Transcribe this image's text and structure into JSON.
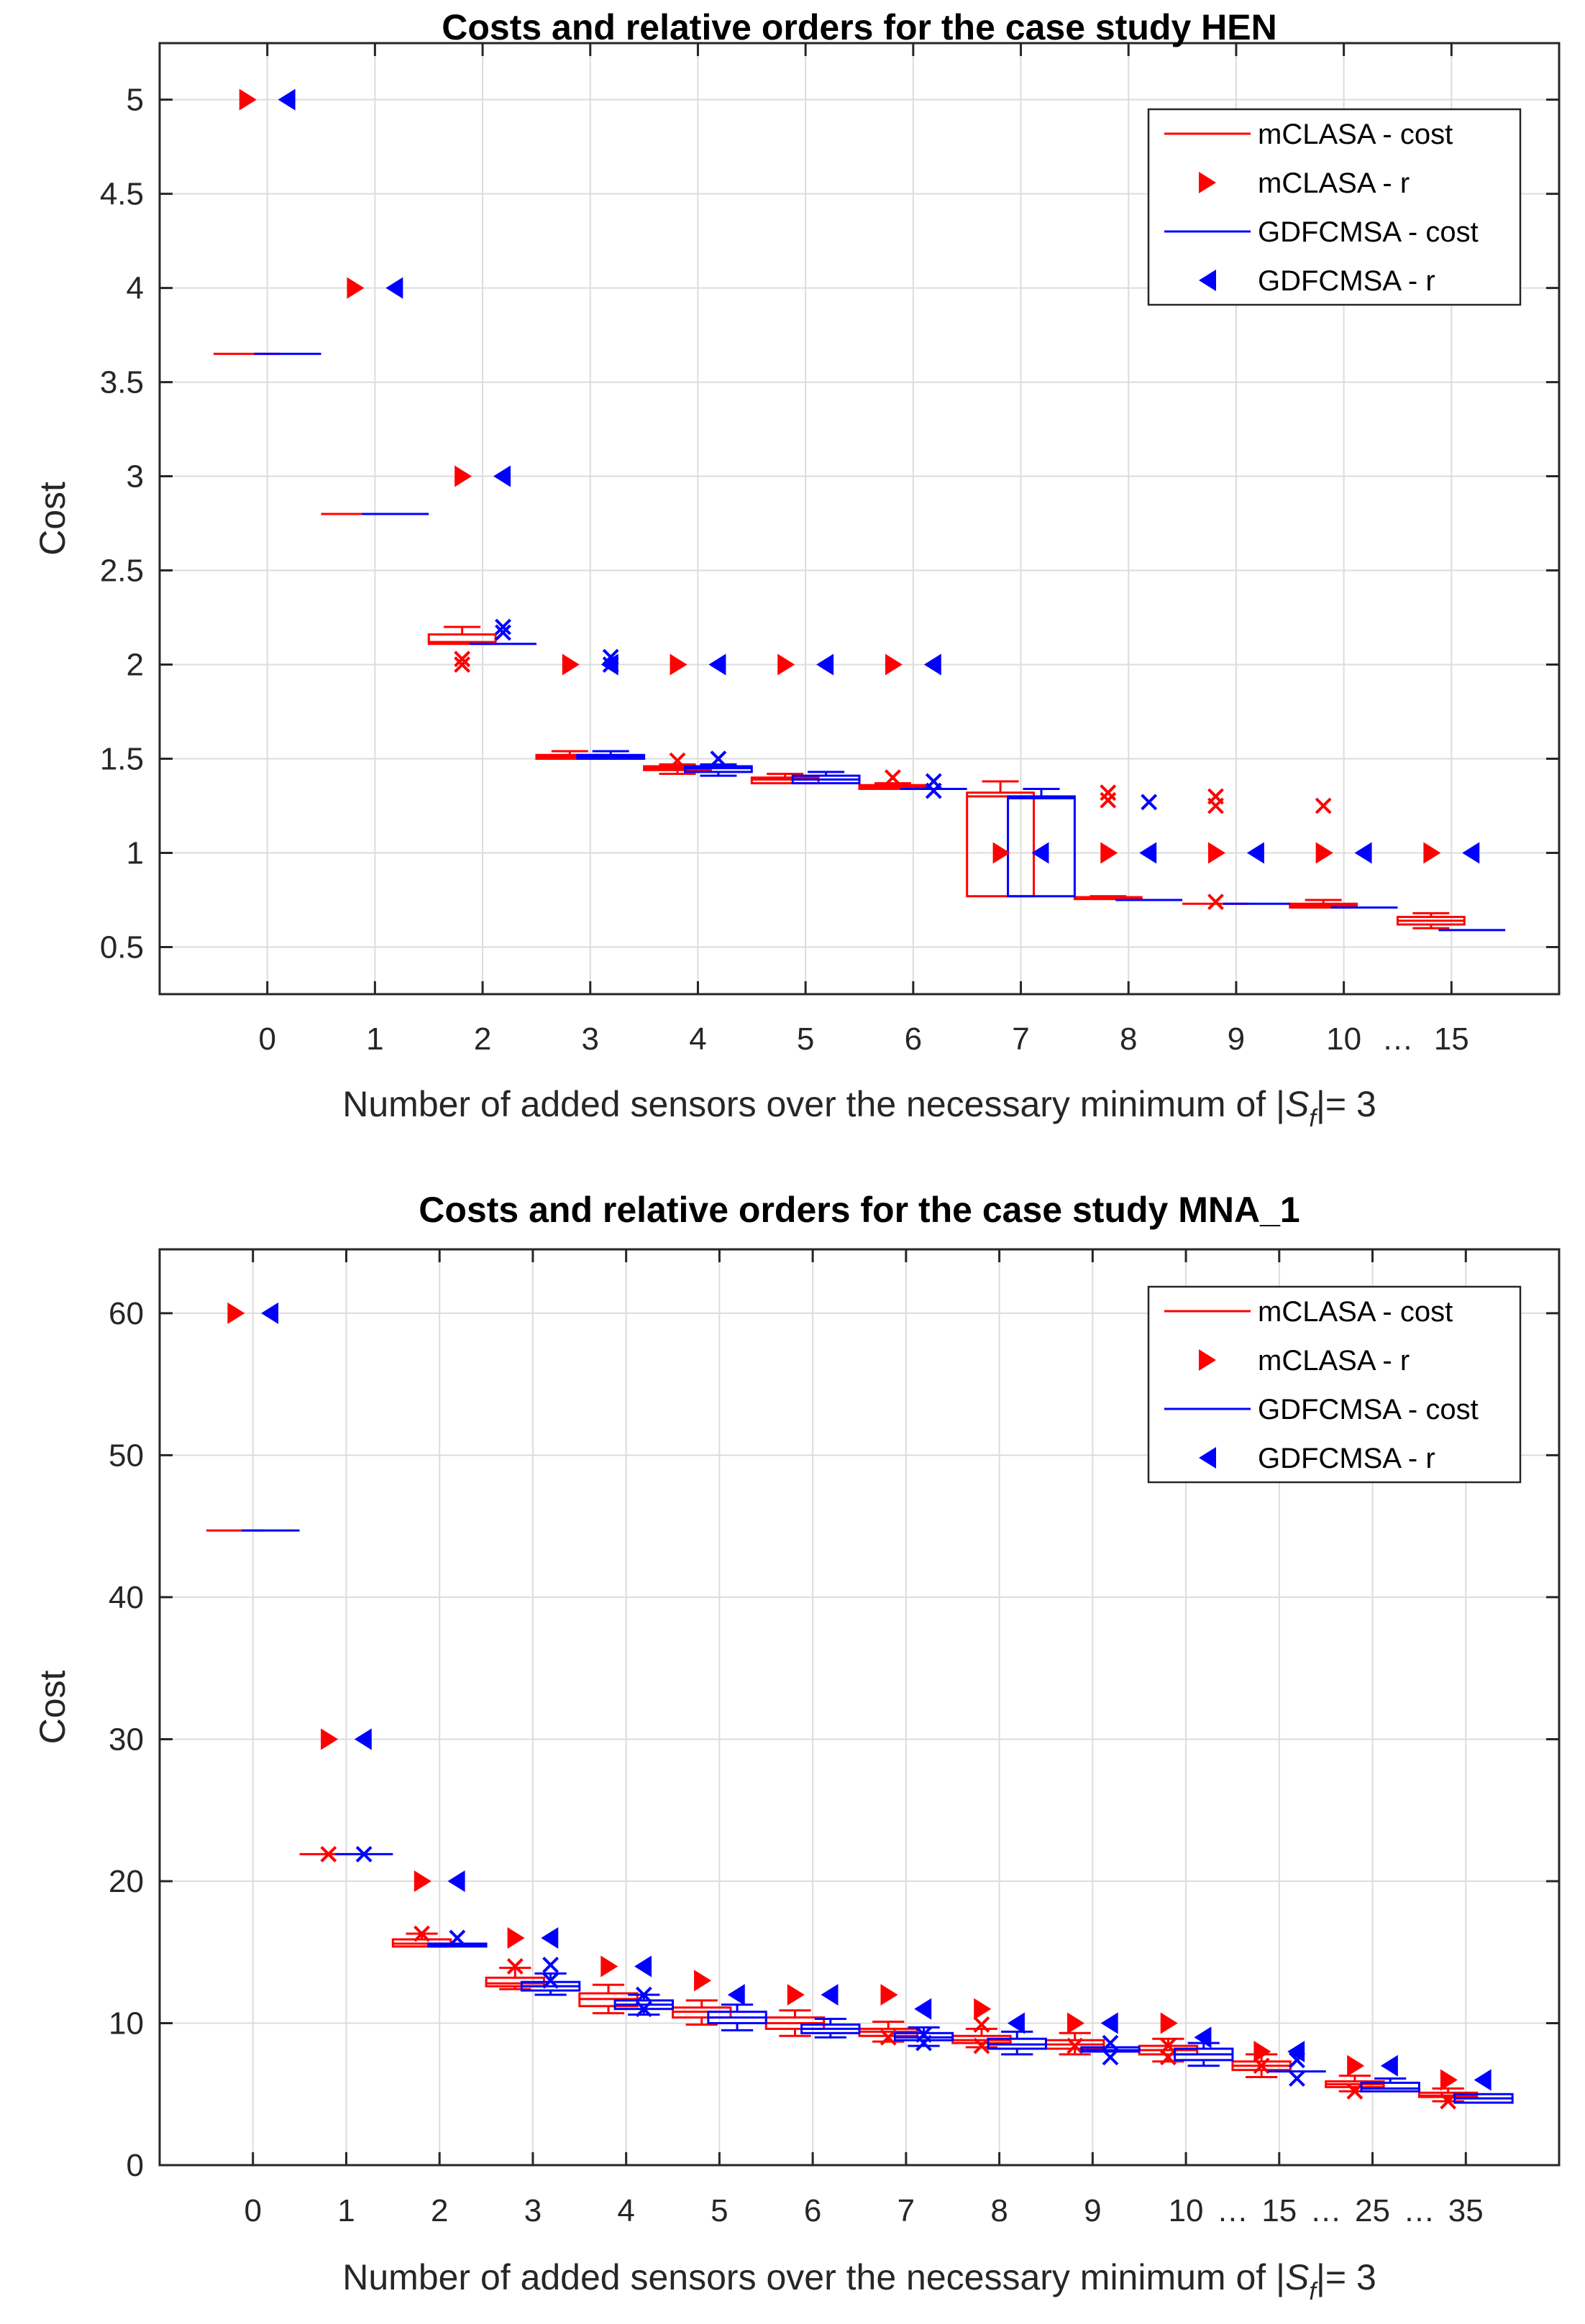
{
  "chart_data": [
    {
      "type": "box",
      "title": "Costs and relative orders for the case study HEN",
      "xlabel_text": "Number of added sensors over the necessary minimum of",
      "xlabel_var": "S",
      "xlabel_sub": "f",
      "xlabel_suffix": "= 3",
      "ylabel": "Cost",
      "ylim": [
        0.25,
        5.3
      ],
      "yticks": [
        0.5,
        1,
        1.5,
        2,
        2.5,
        3,
        3.5,
        4,
        4.5,
        5
      ],
      "categories": [
        "0",
        "1",
        "2",
        "3",
        "4",
        "5",
        "6",
        "7",
        "8",
        "9",
        "10",
        "15"
      ],
      "ellipsis_between": [
        [
          10,
          11
        ]
      ],
      "ellipsis_symbol": "…",
      "grid": true,
      "legend_position": "top-right",
      "legend": [
        "mCLASA - cost",
        "mCLASA - r",
        "GDFCMSA - cost",
        "GDFCMSA - r"
      ],
      "colors": {
        "mCLASA": "#ff0000",
        "GDFCMSA": "#0000ff",
        "grid": "#dcdcdc",
        "axis": "#262626"
      },
      "series": [
        {
          "name": "mCLASA - cost",
          "boxes": [
            {
              "med": 3.65,
              "q1": 3.65,
              "q3": 3.65,
              "wlo": 3.65,
              "whi": 3.65
            },
            {
              "med": 2.8,
              "q1": 2.8,
              "q3": 2.8,
              "wlo": 2.8,
              "whi": 2.8
            },
            {
              "med": 2.12,
              "q1": 2.11,
              "q3": 2.16,
              "wlo": 2.11,
              "whi": 2.2
            },
            {
              "med": 1.51,
              "q1": 1.5,
              "q3": 1.52,
              "wlo": 1.5,
              "whi": 1.54
            },
            {
              "med": 1.45,
              "q1": 1.44,
              "q3": 1.46,
              "wlo": 1.42,
              "whi": 1.47
            },
            {
              "med": 1.39,
              "q1": 1.37,
              "q3": 1.4,
              "wlo": 1.37,
              "whi": 1.42
            },
            {
              "med": 1.35,
              "q1": 1.34,
              "q3": 1.36,
              "wlo": 1.34,
              "whi": 1.37
            },
            {
              "med": 1.3,
              "q1": 0.77,
              "q3": 1.32,
              "wlo": 0.77,
              "whi": 1.38
            },
            {
              "med": 0.76,
              "q1": 0.755,
              "q3": 0.765,
              "wlo": 0.755,
              "whi": 0.77
            },
            {
              "med": 0.73,
              "q1": 0.73,
              "q3": 0.73,
              "wlo": 0.73,
              "whi": 0.73
            },
            {
              "med": 0.72,
              "q1": 0.71,
              "q3": 0.73,
              "wlo": 0.71,
              "whi": 0.75
            },
            {
              "med": 0.64,
              "q1": 0.62,
              "q3": 0.66,
              "wlo": 0.6,
              "whi": 0.68
            }
          ],
          "outliers": [
            {
              "x": 2,
              "y": 2.03
            },
            {
              "x": 2,
              "y": 2.0
            },
            {
              "x": 4,
              "y": 1.49
            },
            {
              "x": 6,
              "y": 1.4
            },
            {
              "x": 8,
              "y": 1.32
            },
            {
              "x": 8,
              "y": 1.28
            },
            {
              "x": 9,
              "y": 1.3
            },
            {
              "x": 9,
              "y": 1.25
            },
            {
              "x": 9,
              "y": 0.74
            },
            {
              "x": 10,
              "y": 1.25
            }
          ],
          "outliers_note": "x index counts from 0"
        },
        {
          "name": "GDFCMSA - cost",
          "boxes": [
            {
              "med": 3.65,
              "q1": 3.65,
              "q3": 3.65,
              "wlo": 3.65,
              "whi": 3.65
            },
            {
              "med": 2.8,
              "q1": 2.8,
              "q3": 2.8,
              "wlo": 2.8,
              "whi": 2.8
            },
            {
              "med": 2.11,
              "q1": 2.11,
              "q3": 2.11,
              "wlo": 2.11,
              "whi": 2.11
            },
            {
              "med": 1.51,
              "q1": 1.5,
              "q3": 1.52,
              "wlo": 1.5,
              "whi": 1.54
            },
            {
              "med": 1.45,
              "q1": 1.43,
              "q3": 1.46,
              "wlo": 1.41,
              "whi": 1.47
            },
            {
              "med": 1.39,
              "q1": 1.37,
              "q3": 1.41,
              "wlo": 1.37,
              "whi": 1.43
            },
            {
              "med": 1.34,
              "q1": 1.34,
              "q3": 1.34,
              "wlo": 1.34,
              "whi": 1.34
            },
            {
              "med": 1.29,
              "q1": 0.77,
              "q3": 1.3,
              "wlo": 0.77,
              "whi": 1.34
            },
            {
              "med": 0.75,
              "q1": 0.75,
              "q3": 0.75,
              "wlo": 0.75,
              "whi": 0.75
            },
            {
              "med": 0.73,
              "q1": 0.73,
              "q3": 0.73,
              "wlo": 0.73,
              "whi": 0.73
            },
            {
              "med": 0.71,
              "q1": 0.71,
              "q3": 0.71,
              "wlo": 0.71,
              "whi": 0.71
            },
            {
              "med": 0.59,
              "q1": 0.59,
              "q3": 0.59,
              "wlo": 0.59,
              "whi": 0.59
            }
          ],
          "outliers": [
            {
              "x": 2,
              "y": 2.2
            },
            {
              "x": 2,
              "y": 2.17
            },
            {
              "x": 3,
              "y": 2.04
            },
            {
              "x": 3,
              "y": 2.0
            },
            {
              "x": 4,
              "y": 1.5
            },
            {
              "x": 6,
              "y": 1.38
            },
            {
              "x": 6,
              "y": 1.33
            },
            {
              "x": 8,
              "y": 1.27
            }
          ],
          "outliers_note": "x index counts from 0"
        },
        {
          "name": "mCLASA - r",
          "values": [
            5,
            4,
            3,
            2,
            2,
            2,
            2,
            1,
            1,
            1,
            1,
            1
          ]
        },
        {
          "name": "GDFCMSA - r",
          "values": [
            5,
            4,
            3,
            2,
            2,
            2,
            2,
            1,
            1,
            1,
            1,
            1
          ]
        }
      ]
    },
    {
      "type": "box",
      "title": "Costs and relative orders for the case study MNA_1",
      "xlabel_text": "Number of added sensors over the necessary minimum of",
      "xlabel_var": "S",
      "xlabel_sub": "f",
      "xlabel_suffix": "= 3",
      "ylabel": "Cost",
      "ylim": [
        0,
        64.5
      ],
      "yticks": [
        0,
        10,
        20,
        30,
        40,
        50,
        60
      ],
      "categories": [
        "0",
        "1",
        "2",
        "3",
        "4",
        "5",
        "6",
        "7",
        "8",
        "9",
        "10",
        "15",
        "25",
        "35"
      ],
      "ellipsis_between": [
        [
          10,
          11
        ],
        [
          11,
          12
        ],
        [
          12,
          13
        ]
      ],
      "ellipsis_symbol": "…",
      "grid": true,
      "legend_position": "top-right",
      "legend": [
        "mCLASA - cost",
        "mCLASA - r",
        "GDFCMSA - cost",
        "GDFCMSA - r"
      ],
      "colors": {
        "mCLASA": "#ff0000",
        "GDFCMSA": "#0000ff",
        "grid": "#dcdcdc",
        "axis": "#262626"
      },
      "series": [
        {
          "name": "mCLASA - cost",
          "boxes": [
            {
              "med": 44.7,
              "q1": 44.7,
              "q3": 44.7,
              "wlo": 44.7,
              "whi": 44.7
            },
            {
              "med": 21.9,
              "q1": 21.9,
              "q3": 21.9,
              "wlo": 21.9,
              "whi": 21.9
            },
            {
              "med": 15.6,
              "q1": 15.4,
              "q3": 15.9,
              "wlo": 15.4,
              "whi": 16.3
            },
            {
              "med": 12.8,
              "q1": 12.6,
              "q3": 13.2,
              "wlo": 12.4,
              "whi": 13.9
            },
            {
              "med": 11.7,
              "q1": 11.2,
              "q3": 12.1,
              "wlo": 10.7,
              "whi": 12.7
            },
            {
              "med": 10.8,
              "q1": 10.4,
              "q3": 11.1,
              "wlo": 9.9,
              "whi": 11.6
            },
            {
              "med": 10.0,
              "q1": 9.6,
              "q3": 10.4,
              "wlo": 9.1,
              "whi": 10.9
            },
            {
              "med": 9.4,
              "q1": 9.1,
              "q3": 9.6,
              "wlo": 8.7,
              "whi": 10.1
            },
            {
              "med": 8.8,
              "q1": 8.6,
              "q3": 9.1,
              "wlo": 8.3,
              "whi": 9.6
            },
            {
              "med": 8.5,
              "q1": 8.2,
              "q3": 8.8,
              "wlo": 7.8,
              "whi": 9.3
            },
            {
              "med": 8.1,
              "q1": 7.8,
              "q3": 8.4,
              "wlo": 7.3,
              "whi": 8.9
            },
            {
              "med": 7.0,
              "q1": 6.7,
              "q3": 7.3,
              "wlo": 6.2,
              "whi": 7.8
            },
            {
              "med": 5.7,
              "q1": 5.5,
              "q3": 5.9,
              "wlo": 5.2,
              "whi": 6.3
            },
            {
              "med": 4.9,
              "q1": 4.8,
              "q3": 5.1,
              "wlo": 4.5,
              "whi": 5.4
            }
          ],
          "outliers": [
            {
              "x": 1,
              "y": 21.9
            },
            {
              "x": 2,
              "y": 16.3
            },
            {
              "x": 3,
              "y": 14.0
            },
            {
              "x": 7,
              "y": 9.0
            },
            {
              "x": 8,
              "y": 9.9
            },
            {
              "x": 8,
              "y": 8.4
            },
            {
              "x": 9,
              "y": 8.4
            },
            {
              "x": 10,
              "y": 8.4
            },
            {
              "x": 10,
              "y": 7.6
            },
            {
              "x": 11,
              "y": 7.0
            },
            {
              "x": 12,
              "y": 5.2
            },
            {
              "x": 13,
              "y": 4.5
            }
          ],
          "outliers_note": "x index counts from 0"
        },
        {
          "name": "GDFCMSA - cost",
          "boxes": [
            {
              "med": 44.7,
              "q1": 44.7,
              "q3": 44.7,
              "wlo": 44.7,
              "whi": 44.7
            },
            {
              "med": 21.9,
              "q1": 21.9,
              "q3": 21.9,
              "wlo": 21.9,
              "whi": 21.9
            },
            {
              "med": 15.5,
              "q1": 15.4,
              "q3": 15.6,
              "wlo": 15.4,
              "whi": 15.6
            },
            {
              "med": 12.6,
              "q1": 12.3,
              "q3": 12.9,
              "wlo": 12.0,
              "whi": 13.5
            },
            {
              "med": 11.3,
              "q1": 11.0,
              "q3": 11.6,
              "wlo": 10.6,
              "whi": 12.0
            },
            {
              "med": 10.4,
              "q1": 10.0,
              "q3": 10.8,
              "wlo": 9.5,
              "whi": 11.3
            },
            {
              "med": 9.6,
              "q1": 9.3,
              "q3": 9.9,
              "wlo": 9.0,
              "whi": 10.3
            },
            {
              "med": 9.0,
              "q1": 8.8,
              "q3": 9.3,
              "wlo": 8.4,
              "whi": 9.7
            },
            {
              "med": 8.5,
              "q1": 8.2,
              "q3": 8.9,
              "wlo": 7.8,
              "whi": 9.4
            },
            {
              "med": 8.1,
              "q1": 8.0,
              "q3": 8.3,
              "wlo": 8.0,
              "whi": 8.3
            },
            {
              "med": 7.8,
              "q1": 7.4,
              "q3": 8.2,
              "wlo": 7.0,
              "whi": 8.6
            },
            {
              "med": 6.6,
              "q1": 6.6,
              "q3": 6.6,
              "wlo": 6.6,
              "whi": 6.6
            },
            {
              "med": 5.4,
              "q1": 5.2,
              "q3": 5.8,
              "wlo": 5.2,
              "whi": 6.1
            },
            {
              "med": 4.7,
              "q1": 4.4,
              "q3": 5.0,
              "wlo": 4.4,
              "whi": 5.0
            }
          ],
          "outliers": [
            {
              "x": 1,
              "y": 21.9
            },
            {
              "x": 2,
              "y": 16.0
            },
            {
              "x": 3,
              "y": 14.1
            },
            {
              "x": 3,
              "y": 13.0
            },
            {
              "x": 4,
              "y": 12.0
            },
            {
              "x": 4,
              "y": 11.0
            },
            {
              "x": 7,
              "y": 9.2
            },
            {
              "x": 7,
              "y": 8.6
            },
            {
              "x": 9,
              "y": 8.6
            },
            {
              "x": 9,
              "y": 7.6
            },
            {
              "x": 11,
              "y": 7.4
            },
            {
              "x": 11,
              "y": 6.1
            }
          ],
          "outliers_note": "x index counts from 0"
        },
        {
          "name": "mCLASA - r",
          "values": [
            60,
            30,
            20,
            16,
            14,
            13,
            12,
            12,
            11,
            10,
            10,
            8,
            7,
            6
          ]
        },
        {
          "name": "GDFCMSA - r",
          "values": [
            60,
            30,
            20,
            16,
            14,
            12,
            12,
            11,
            10,
            10,
            9,
            8,
            7,
            6
          ]
        }
      ]
    }
  ]
}
